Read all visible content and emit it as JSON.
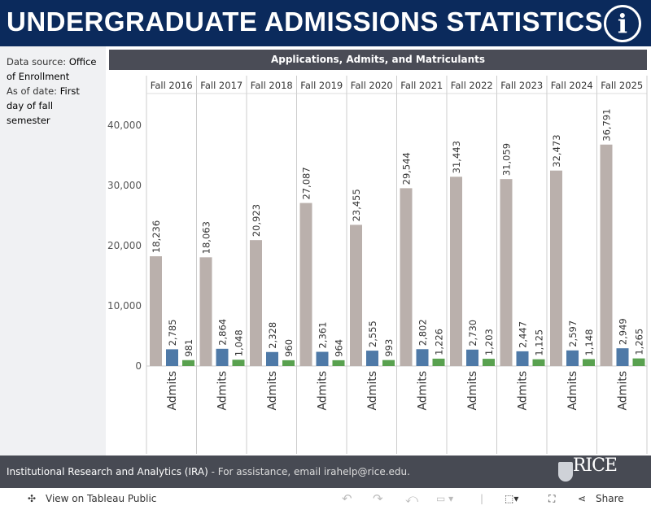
{
  "header": {
    "title": "UNDERGRADUATE ADMISSIONS STATISTICS",
    "info_icon": "info-icon"
  },
  "sidebar": {
    "source_label": "Data source:",
    "source_value": "Office of Enrollment",
    "date_label": "As of date:",
    "date_value": "First day of fall semester"
  },
  "chart_data": {
    "type": "bar",
    "title": "Applications, Admits, and Matriculants",
    "categories": [
      "Fall 2016",
      "Fall 2017",
      "Fall 2018",
      "Fall 2019",
      "Fall 2020",
      "Fall 2021",
      "Fall 2022",
      "Fall 2023",
      "Fall 2024",
      "Fall 2025"
    ],
    "series": [
      {
        "color": "#bab0ac",
        "values": [
          18236,
          18063,
          20923,
          27087,
          23455,
          29544,
          31443,
          31059,
          32473,
          36791
        ],
        "labels": [
          "18,236",
          "18,063",
          "20,923",
          "27,087",
          "23,455",
          "29,544",
          "31,443",
          "31,059",
          "32,473",
          "36,791"
        ]
      },
      {
        "name": "Admits",
        "color": "#4e79a7",
        "values": [
          2785,
          2864,
          2328,
          2361,
          2555,
          2802,
          2730,
          2447,
          2597,
          2949
        ],
        "labels": [
          "2,785",
          "2,864",
          "2,328",
          "2,361",
          "2,555",
          "2,802",
          "2,730",
          "2,447",
          "2,597",
          "2,949"
        ]
      },
      {
        "color": "#59a14f",
        "values": [
          981,
          1048,
          960,
          964,
          993,
          1226,
          1203,
          1125,
          1148,
          1265
        ],
        "labels": [
          "981",
          "1,048",
          "960",
          "964",
          "993",
          "1,226",
          "1,203",
          "1,125",
          "1,148",
          "1,265"
        ]
      }
    ],
    "ylim": [
      0,
      45000
    ],
    "yticks": [
      0,
      10000,
      20000,
      30000,
      40000
    ],
    "ytick_labels": [
      "0",
      "10,000",
      "20,000",
      "30,000",
      "40,000"
    ],
    "grid": false
  },
  "footer": {
    "org": "Institutional Research and Analytics (IRA)",
    "contact": " - For assistance, email irahelp@rice.edu.",
    "logo": "RICE"
  },
  "toolbar": {
    "view_label": "View on Tableau Public",
    "share_label": "Share"
  }
}
